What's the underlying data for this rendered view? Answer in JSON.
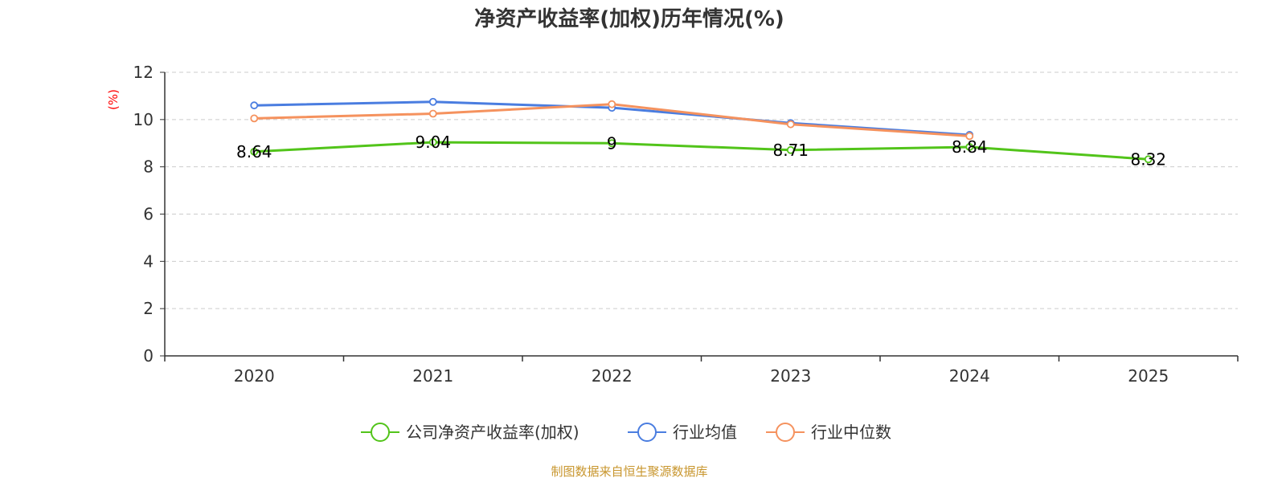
{
  "chart_data": {
    "type": "line",
    "title": "净资产收益率(加权)历年情况(%)",
    "categories": [
      "2020",
      "2021",
      "2022",
      "2023",
      "2024",
      "2025"
    ],
    "ylabel": "(%)",
    "ylim": [
      0,
      12
    ],
    "yticks": [
      0,
      2,
      4,
      6,
      8,
      10,
      12
    ],
    "ytick_labels": [
      "0",
      "2",
      "4",
      "6",
      "8",
      "10",
      "12"
    ],
    "grid": true,
    "legend_position": "bottom-center",
    "series": [
      {
        "name": "公司净资产收益率(加权)",
        "color": "#52c41a",
        "values": [
          8.64,
          9.04,
          9,
          8.71,
          8.84,
          8.32
        ],
        "labels": [
          "8.64",
          "9.04",
          "9",
          "8.71",
          "8.84",
          "8.32"
        ]
      },
      {
        "name": "行业均值",
        "color": "#4a7de0",
        "values": [
          10.6,
          10.75,
          10.5,
          9.85,
          9.35,
          null
        ]
      },
      {
        "name": "行业中位数",
        "color": "#f5925e",
        "values": [
          10.05,
          10.25,
          10.65,
          9.8,
          9.3,
          null
        ]
      }
    ]
  },
  "source": "制图数据来自恒生聚源数据库",
  "colors": {
    "axis": "#333333",
    "grid": "#cccccc",
    "unit": "#ff0000",
    "source": "#c8962e"
  }
}
